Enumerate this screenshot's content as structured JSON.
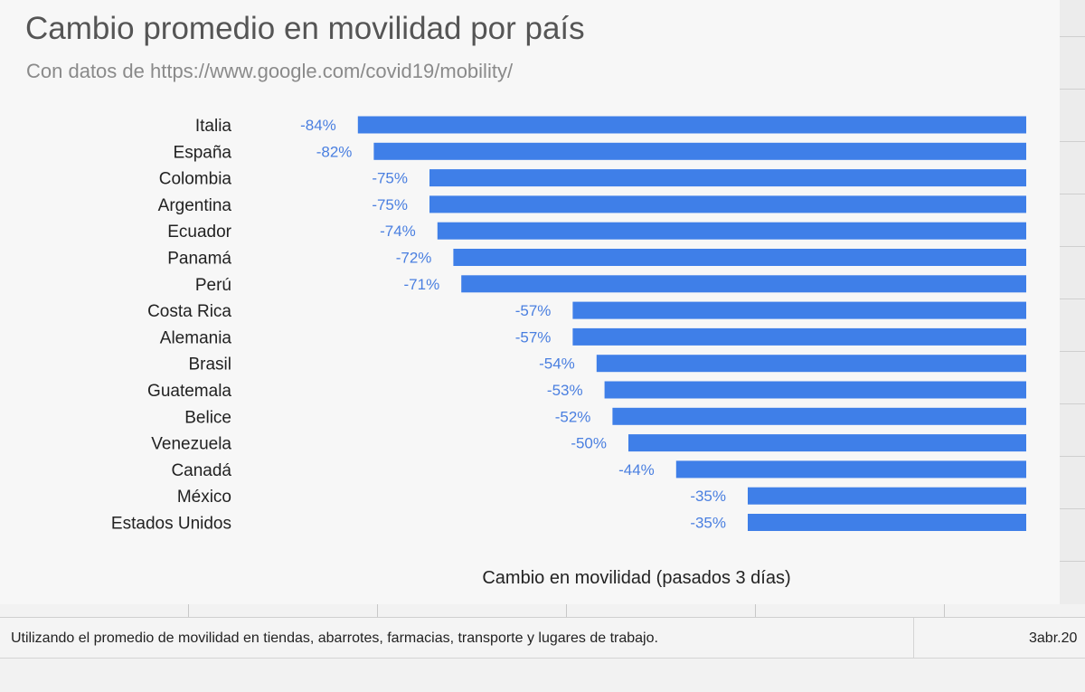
{
  "chart_data": {
    "type": "bar",
    "orientation": "horizontal",
    "title": "Cambio promedio en movilidad por país",
    "subtitle": "Con datos de https://www.google.com/covid19/mobility/",
    "xlabel": "Cambio en movilidad (pasados 3 días)",
    "categories": [
      "Italia",
      "España",
      "Colombia",
      "Argentina",
      "Ecuador",
      "Panamá",
      "Perú",
      "Costa Rica",
      "Alemania",
      "Brasil",
      "Guatemala",
      "Belice",
      "Venezuela",
      "Canadá",
      "México",
      "Estados Unidos"
    ],
    "values": [
      -84,
      -82,
      -75,
      -75,
      -74,
      -72,
      -71,
      -57,
      -57,
      -54,
      -53,
      -52,
      -50,
      -44,
      -35,
      -35
    ],
    "value_labels": [
      "-84%",
      "-82%",
      "-75%",
      "-75%",
      "-74%",
      "-72%",
      "-71%",
      "-57%",
      "-57%",
      "-54%",
      "-53%",
      "-52%",
      "-50%",
      "-44%",
      "-35%",
      "-35%"
    ],
    "xlim": [
      -100,
      0
    ],
    "bar_color": "#3f7fe8",
    "label_color": "#4a7fe0",
    "grid": false,
    "legend": "none"
  },
  "footer": {
    "note": "Utilizando el promedio de movilidad en tiendas, abarrotes, farmacias, transporte y lugares de trabajo.",
    "date": "3abr.20"
  }
}
